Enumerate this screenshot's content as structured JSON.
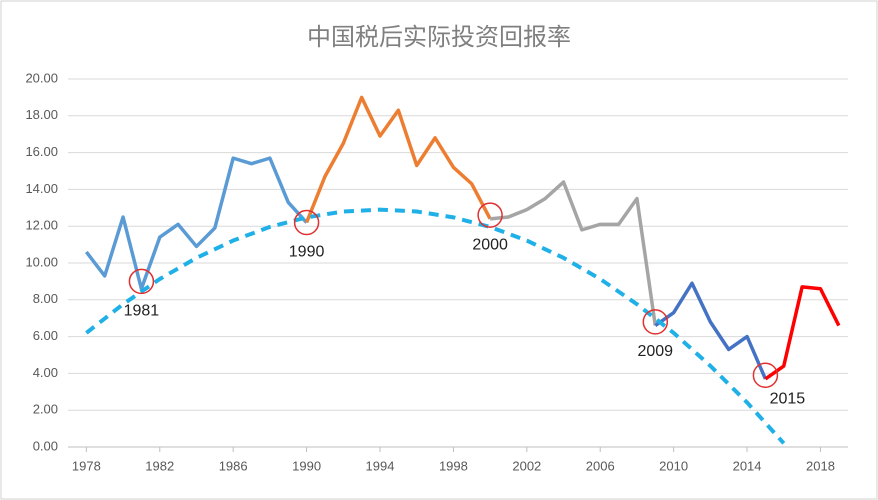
{
  "chart_data": {
    "type": "line",
    "title": "中国税后实际投资回报率",
    "xlim": [
      1977,
      2019.5
    ],
    "xticks": [
      1978,
      1982,
      1986,
      1990,
      1994,
      1998,
      2002,
      2006,
      2010,
      2014,
      2018
    ],
    "ylim": [
      0,
      20
    ],
    "yticks": [
      {
        "value": 0,
        "label": "0.00"
      },
      {
        "value": 2,
        "label": "2.00"
      },
      {
        "value": 4,
        "label": "4.00"
      },
      {
        "value": 6,
        "label": "6.00"
      },
      {
        "value": 8,
        "label": "8.00"
      },
      {
        "value": 10,
        "label": "10.00"
      },
      {
        "value": 12,
        "label": "12.00"
      },
      {
        "value": 14,
        "label": "14.00"
      },
      {
        "value": 16,
        "label": "16.00"
      },
      {
        "value": 18,
        "label": "18.00"
      },
      {
        "value": 20,
        "label": "20.00"
      }
    ],
    "grid": true,
    "series": [
      {
        "color": "#5b9bd5",
        "x": [
          1978,
          1979,
          1980,
          1981,
          1982,
          1983,
          1984,
          1985,
          1986,
          1987,
          1988,
          1989,
          1990
        ],
        "values": [
          10.6,
          9.3,
          12.5,
          8.6,
          11.4,
          12.1,
          10.9,
          11.9,
          15.7,
          15.4,
          15.7,
          13.3,
          12.2
        ]
      },
      {
        "color": "#ed7d31",
        "x": [
          1990,
          1991,
          1992,
          1993,
          1994,
          1995,
          1996,
          1997,
          1998,
          1999,
          2000
        ],
        "values": [
          12.2,
          14.7,
          16.5,
          19.0,
          16.9,
          18.3,
          15.3,
          16.8,
          15.2,
          14.3,
          12.4
        ]
      },
      {
        "color": "#a5a5a5",
        "x": [
          2000,
          2001,
          2002,
          2003,
          2004,
          2005,
          2006,
          2007,
          2008,
          2009
        ],
        "values": [
          12.4,
          12.5,
          12.9,
          13.5,
          14.4,
          11.8,
          12.1,
          12.1,
          13.5,
          6.6
        ]
      },
      {
        "color": "#4472c4",
        "x": [
          2009,
          2010,
          2011,
          2012,
          2013,
          2014,
          2015
        ],
        "values": [
          6.6,
          7.3,
          8.9,
          6.8,
          5.3,
          6.0,
          3.7
        ]
      },
      {
        "color": "#ff0000",
        "x": [
          2015,
          2016,
          2017,
          2018,
          2019
        ],
        "values": [
          3.7,
          4.4,
          8.7,
          8.6,
          6.6
        ]
      },
      {
        "color": "#1fb0e8",
        "dashed": true,
        "x": [
          1978,
          1980,
          1982,
          1984,
          1986,
          1988,
          1990,
          1992,
          1994,
          1996,
          1998,
          2000,
          2002,
          2004,
          2006,
          2008,
          2010,
          2012,
          2014,
          2016
        ],
        "values": [
          6.2,
          7.76,
          9.13,
          10.28,
          11.22,
          11.96,
          12.48,
          12.8,
          12.9,
          12.8,
          12.48,
          11.96,
          11.22,
          10.28,
          9.13,
          7.76,
          6.2,
          4.41,
          2.42,
          0.2
        ]
      }
    ],
    "annotations": [
      {
        "text": "1981",
        "x": 1981,
        "y": 9.0
      },
      {
        "text": "1990",
        "x": 1990,
        "y": 12.2
      },
      {
        "text": "2000",
        "x": 2000,
        "y": 12.6
      },
      {
        "text": "2009",
        "x": 2009,
        "y": 6.8
      },
      {
        "text": "2015",
        "x": 2015,
        "y": 3.9
      }
    ]
  }
}
